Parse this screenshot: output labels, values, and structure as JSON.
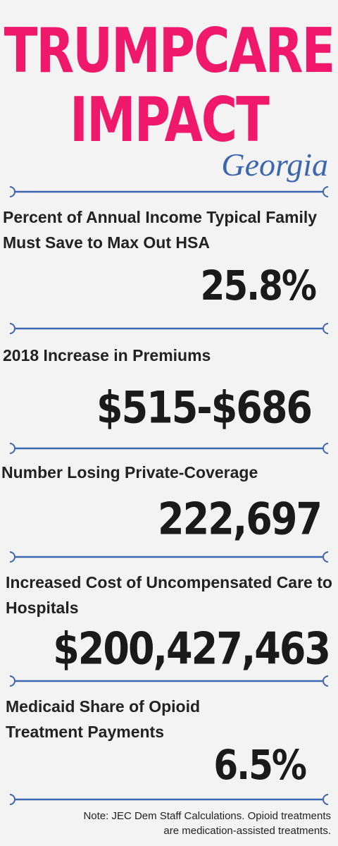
{
  "header": {
    "title_line1": "TRUMPCARE",
    "title_line2": "IMPACT",
    "state": "Georgia"
  },
  "colors": {
    "title": "#f0186a",
    "accent": "#3d66b0",
    "text": "#222222",
    "background": "#f3f3f3"
  },
  "stats": [
    {
      "label": "Percent of Annual Income Typical Family Must Save to Max Out HSA",
      "value": "25.8%"
    },
    {
      "label": "2018 Increase in Premiums",
      "value": "$515-$686"
    },
    {
      "label": "Number Losing Private-Coverage",
      "value": "222,697"
    },
    {
      "label": "Increased Cost of Uncompensated Care to Hospitals",
      "value": "$200,427,463"
    },
    {
      "label": "Medicaid Share of Opioid Treatment Payments",
      "value": "6.5%"
    }
  ],
  "note": "Note: JEC Dem Staff Calculations. Opioid treatments are medication-assisted treatments."
}
